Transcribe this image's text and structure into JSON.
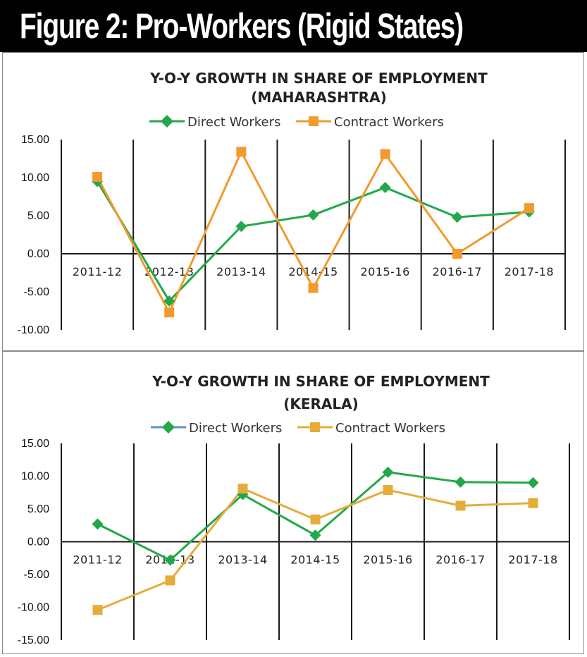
{
  "header": {
    "title": "Figure 2: Pro-Workers (Rigid States)"
  },
  "chart_data": [
    {
      "type": "line",
      "title": "Y-O-Y GROWTH IN SHARE OF EMPLOYMENT",
      "subtitle": "(MAHARASHTRA)",
      "categories": [
        "2011-12",
        "2012-13",
        "2013-14",
        "2014-15",
        "2015-16",
        "2016-17",
        "2017-18"
      ],
      "series": [
        {
          "name": "Direct Workers",
          "values": [
            9.5,
            -6.2,
            3.6,
            5.1,
            8.7,
            4.8,
            5.5
          ],
          "color": "#22a84a",
          "marker": "diamond"
        },
        {
          "name": "Contract Workers",
          "values": [
            10.1,
            -7.7,
            13.4,
            -4.5,
            13.1,
            0.0,
            6.0
          ],
          "color": "#f29a2e",
          "marker": "square"
        }
      ],
      "ylim": [
        -10,
        15
      ],
      "yticks": [
        "15.00",
        "10.00",
        "5.00",
        "0.00",
        "-5.00",
        "-10.00"
      ],
      "legend": "top",
      "grid": "vertical"
    },
    {
      "type": "line",
      "title": "Y-O-Y GROWTH IN SHARE OF EMPLOYMENT",
      "subtitle": "(KERALA)",
      "categories": [
        "2011-12",
        "2012-13",
        "2013-14",
        "2014-15",
        "2015-16",
        "2016-17",
        "2017-18"
      ],
      "series": [
        {
          "name": "Direct Workers",
          "values": [
            2.7,
            -2.8,
            7.2,
            1.0,
            10.6,
            9.1,
            9.0
          ],
          "color": "#22a84a",
          "legend_line_color": "#5b8fd6",
          "marker": "diamond"
        },
        {
          "name": "Contract Workers",
          "values": [
            -10.4,
            -5.9,
            8.1,
            3.4,
            7.9,
            5.5,
            5.9
          ],
          "color": "#e5ac3a",
          "marker": "square"
        }
      ],
      "ylim": [
        -15,
        15
      ],
      "yticks": [
        "15.00",
        "10.00",
        "5.00",
        "0.00",
        "-5.00",
        "-10.00",
        "-15.00"
      ],
      "legend": "top",
      "grid": "vertical"
    }
  ]
}
